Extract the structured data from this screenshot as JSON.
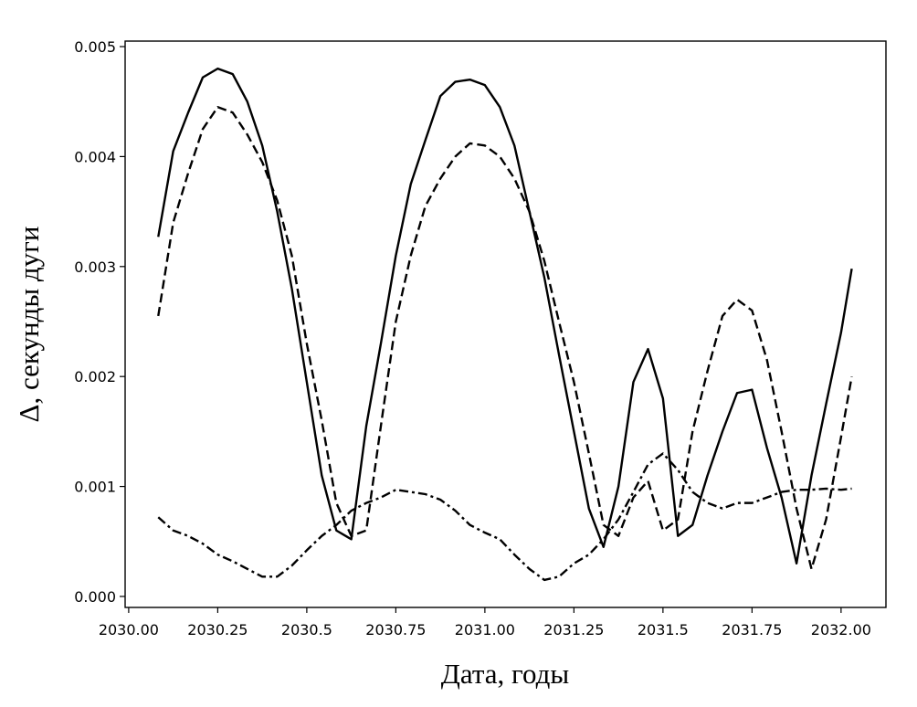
{
  "chart_data": {
    "type": "line",
    "x_label": "Дата, годы",
    "y_label": "Δ, секунды дуги",
    "x": [
      2030.083,
      2030.125,
      2030.167,
      2030.208,
      2030.25,
      2030.292,
      2030.333,
      2030.375,
      2030.417,
      2030.458,
      2030.5,
      2030.542,
      2030.583,
      2030.625,
      2030.667,
      2030.708,
      2030.75,
      2030.792,
      2030.833,
      2030.875,
      2030.917,
      2030.958,
      2031.0,
      2031.042,
      2031.083,
      2031.125,
      2031.167,
      2031.208,
      2031.25,
      2031.292,
      2031.333,
      2031.375,
      2031.417,
      2031.458,
      2031.5,
      2031.542,
      2031.583,
      2031.625,
      2031.667,
      2031.708,
      2031.75,
      2031.792,
      2031.833,
      2031.875,
      2031.917,
      2031.958,
      2032.0,
      2032.03
    ],
    "series": [
      {
        "color": "#000000",
        "dash": "solid",
        "values": [
          0.00327,
          0.00405,
          0.0044,
          0.00472,
          0.0048,
          0.00475,
          0.0045,
          0.0041,
          0.0035,
          0.0028,
          0.00195,
          0.0011,
          0.0006,
          0.00052,
          0.00155,
          0.0023,
          0.0031,
          0.00375,
          0.00415,
          0.00455,
          0.00468,
          0.0047,
          0.00465,
          0.00445,
          0.0041,
          0.0035,
          0.0029,
          0.0022,
          0.0015,
          0.0008,
          0.00045,
          0.001,
          0.00195,
          0.00225,
          0.0018,
          0.00055,
          0.00065,
          0.0011,
          0.0015,
          0.00185,
          0.00188,
          0.00135,
          0.0009,
          0.0003,
          0.0011,
          0.00175,
          0.0024,
          0.00298
        ]
      },
      {
        "color": "#000000",
        "dash": "dashed",
        "values": [
          0.00255,
          0.0034,
          0.00385,
          0.00425,
          0.00445,
          0.0044,
          0.0042,
          0.00395,
          0.0036,
          0.0031,
          0.0023,
          0.0016,
          0.00085,
          0.00055,
          0.0006,
          0.00155,
          0.0025,
          0.0031,
          0.00355,
          0.0038,
          0.004,
          0.00412,
          0.0041,
          0.004,
          0.0038,
          0.0035,
          0.00305,
          0.0025,
          0.00195,
          0.0013,
          0.00065,
          0.00055,
          0.0009,
          0.00105,
          0.0006,
          0.0007,
          0.0015,
          0.00205,
          0.00255,
          0.0027,
          0.0026,
          0.00215,
          0.0015,
          0.0008,
          0.00025,
          0.0007,
          0.00145,
          0.002
        ]
      },
      {
        "color": "#000000",
        "dash": "dashdot",
        "values": [
          0.00072,
          0.0006,
          0.00055,
          0.00048,
          0.00038,
          0.00032,
          0.00025,
          0.00018,
          0.00018,
          0.00028,
          0.00042,
          0.00055,
          0.00065,
          0.00078,
          0.00085,
          0.0009,
          0.00097,
          0.00095,
          0.00093,
          0.00088,
          0.00078,
          0.00065,
          0.00058,
          0.00052,
          0.00038,
          0.00025,
          0.00015,
          0.00018,
          0.0003,
          0.00038,
          0.00052,
          0.0007,
          0.00095,
          0.0012,
          0.0013,
          0.00115,
          0.00095,
          0.00085,
          0.0008,
          0.00085,
          0.00085,
          0.0009,
          0.00095,
          0.00097,
          0.00097,
          0.00098,
          0.00097,
          0.00098
        ]
      }
    ],
    "xlim": [
      2029.99,
      2032.126
    ],
    "ylim": [
      -0.0001,
      0.00505
    ],
    "xticks": [
      {
        "value": 2030,
        "label": "2030.00"
      },
      2030.25,
      2030.5,
      2030.75,
      {
        "value": 2031,
        "label": "2031.00"
      },
      2031.25,
      2031.5,
      2031.75,
      {
        "value": 2032,
        "label": "2032.00"
      }
    ],
    "yticks": [
      {
        "value": 0,
        "label": "0.000"
      },
      0.001,
      0.002,
      0.003,
      0.004,
      0.005
    ],
    "grid": false
  }
}
